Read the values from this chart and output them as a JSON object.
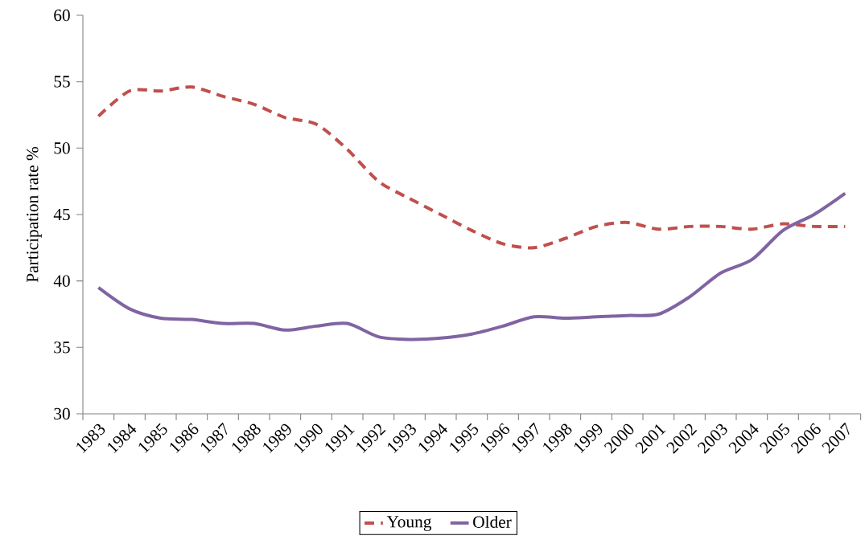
{
  "chart_data": {
    "type": "line",
    "ylabel": "Participation rate %",
    "categories": [
      "1983",
      "1984",
      "1985",
      "1986",
      "1987",
      "1988",
      "1989",
      "1990",
      "1991",
      "1992",
      "1993",
      "1994",
      "1995",
      "1996",
      "1997",
      "1998",
      "1999",
      "2000",
      "2001",
      "2002",
      "2003",
      "2004",
      "2005",
      "2006",
      "2007"
    ],
    "series": [
      {
        "name": "Young",
        "color": "#c0504d",
        "line_style": "dashed",
        "values": [
          52.4,
          54.3,
          54.3,
          54.6,
          53.9,
          53.3,
          52.3,
          51.8,
          49.9,
          47.5,
          46.2,
          45.0,
          43.8,
          42.8,
          42.5,
          43.2,
          44.1,
          44.4,
          43.9,
          44.1,
          44.1,
          43.9,
          44.3,
          44.1,
          44.1
        ]
      },
      {
        "name": "Older",
        "color": "#8064a2",
        "line_style": "solid",
        "values": [
          39.5,
          37.9,
          37.2,
          37.1,
          36.8,
          36.8,
          36.3,
          36.6,
          36.8,
          35.8,
          35.6,
          35.7,
          36.0,
          36.6,
          37.3,
          37.2,
          37.3,
          37.4,
          37.5,
          38.8,
          40.6,
          41.6,
          43.8,
          45.0,
          46.6
        ]
      }
    ],
    "ylim": [
      30,
      60
    ],
    "yticks": [
      30,
      35,
      40,
      45,
      50,
      55,
      60
    ],
    "grid": false,
    "legend": "bottom",
    "marker": "none"
  }
}
